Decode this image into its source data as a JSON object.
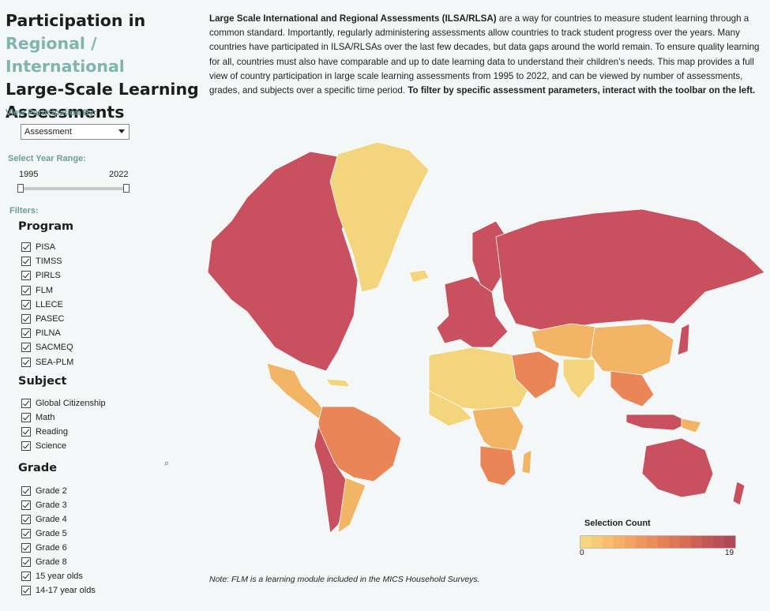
{
  "title": {
    "line1": "Participation in",
    "line2": "Regional / International",
    "line3": "Large-Scale Learning",
    "line4": "Assessments"
  },
  "view_by": {
    "label": "View Participation By:",
    "selected": "Assessment"
  },
  "year_range": {
    "label": "Select Year Range:",
    "start": "1995",
    "end": "2022"
  },
  "filters_label": "Filters:",
  "program": {
    "header": "Program",
    "items": [
      "PISA",
      "TIMSS",
      "PIRLS",
      "FLM",
      "LLECE",
      "PASEC",
      "PILNA",
      "SACMEQ",
      "SEA-PLM"
    ]
  },
  "subject": {
    "header": "Subject",
    "items": [
      "Global Citizenship",
      "Math",
      "Reading",
      "Science"
    ]
  },
  "grade": {
    "header": "Grade",
    "items": [
      "Grade 2",
      "Grade 3",
      "Grade 4",
      "Grade 5",
      "Grade 6",
      "Grade 8",
      "15 year olds",
      "14-17 year olds"
    ]
  },
  "intro": {
    "p1_bold": "Large Scale International and Regional Assessments (ILSA/RLSA)",
    "p1": " are a way for countries to measure student learning through a common standard. Importantly, regularly administering assessments allow countries to track student progress over the years. Many countries have participated in ILSA/RLSAs over the last few decades, but data gaps around the world remain. To ensure quality learning for all, countries must also have comparable and up to date learning data to understand their children’s needs. This map provides a full view of country participation in large scale learning assessments from 1995 to 2022, and can be viewed by number of assessments, grades, and subjects over a specific time period.",
    "p2_bold": " To filter by specific assessment parameters, interact with the toolbar on the left."
  },
  "legend": {
    "title": "Selection Count",
    "min": "0",
    "max": "19",
    "colors": [
      "#f6d57f",
      "#f7ca76",
      "#f8be6e",
      "#f7b166",
      "#f4a460",
      "#f0985c",
      "#eb8c59",
      "#e58157",
      "#df7656",
      "#d76b56",
      "#ce6156",
      "#c45756",
      "#bb4f57",
      "#b14858"
    ]
  },
  "map_colors": {
    "low": "#f3d57e",
    "mid": "#f2b465",
    "midhigh": "#e98556",
    "high": "#c9505f",
    "border": "#ffffff"
  },
  "note": "Note: FLM is a learning module included in the MICS Household Surveys."
}
